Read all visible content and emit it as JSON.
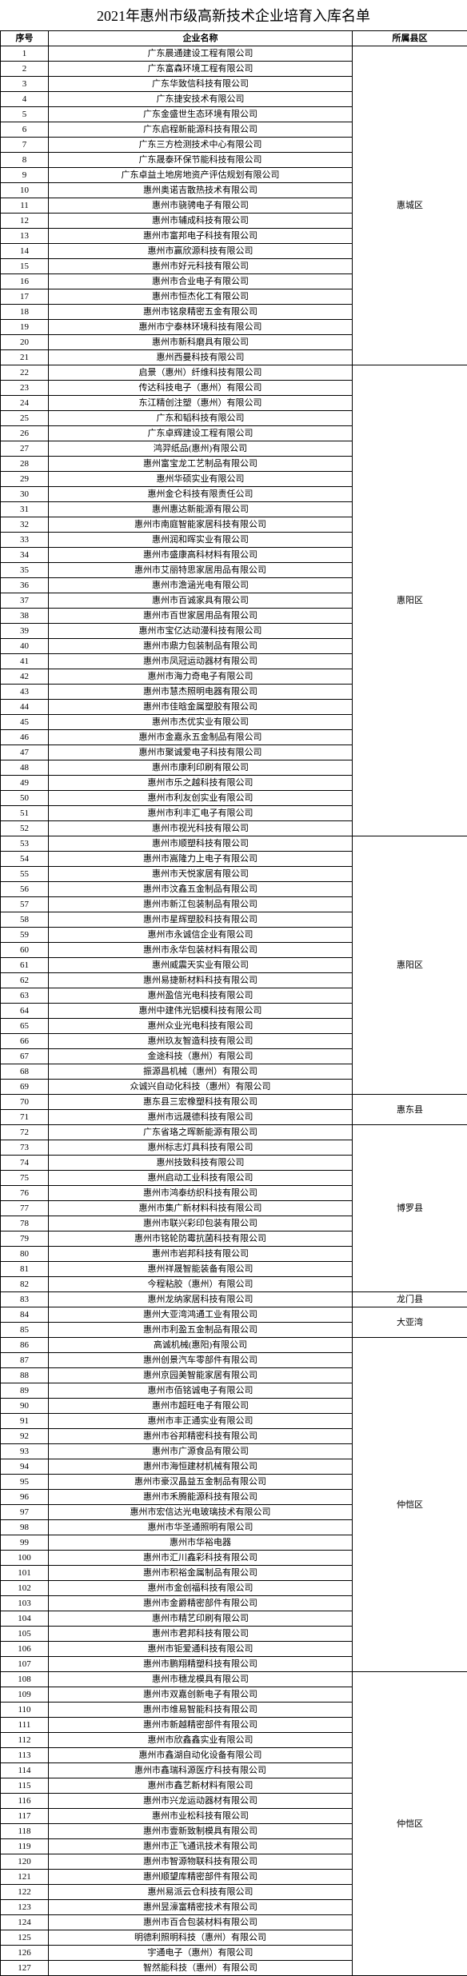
{
  "title": "2021年惠州市级高新技术企业培育入库名单",
  "columns": [
    "序号",
    "企业名称",
    "所属县区"
  ],
  "groups": [
    {
      "district": "惠城区",
      "rows": [
        {
          "seq": "1",
          "name": "广东晨通建设工程有限公司"
        },
        {
          "seq": "2",
          "name": "广东富森环境工程有限公司"
        },
        {
          "seq": "3",
          "name": "广东华致信科技有限公司"
        },
        {
          "seq": "4",
          "name": "广东捷安技术有限公司"
        },
        {
          "seq": "5",
          "name": "广东金盛世生态环境有限公司"
        },
        {
          "seq": "6",
          "name": "广东启程新能源科技有限公司"
        },
        {
          "seq": "7",
          "name": "广东三方检测技术中心有限公司"
        },
        {
          "seq": "8",
          "name": "广东晟泰环保节能科技有限公司"
        },
        {
          "seq": "9",
          "name": "广东卓益土地房地资产评估规划有限公司"
        },
        {
          "seq": "10",
          "name": "惠州奥诺吉散热技术有限公司"
        },
        {
          "seq": "11",
          "name": "惠州市骁骋电子有限公司"
        },
        {
          "seq": "12",
          "name": "惠州市辅成科技有限公司"
        },
        {
          "seq": "13",
          "name": "惠州市富邦电子科技有限公司"
        },
        {
          "seq": "14",
          "name": "惠州市赢欣源科技有限公司"
        },
        {
          "seq": "15",
          "name": "惠州市好元科技有限公司"
        },
        {
          "seq": "16",
          "name": "惠州市合业电子有限公司"
        },
        {
          "seq": "17",
          "name": "惠州市恒杰化工有限公司"
        },
        {
          "seq": "18",
          "name": "惠州市铭泉精密五金有限公司"
        },
        {
          "seq": "19",
          "name": "惠州市宁泰林环境科技有限公司"
        },
        {
          "seq": "20",
          "name": "惠州市新科磨具有限公司"
        },
        {
          "seq": "21",
          "name": "惠州西曼科技有限公司"
        }
      ]
    },
    {
      "district": "惠阳区",
      "rows": [
        {
          "seq": "22",
          "name": "启景（惠州）纤维科技有限公司"
        },
        {
          "seq": "23",
          "name": "传达科技电子（惠州）有限公司"
        },
        {
          "seq": "24",
          "name": "东江精创注塑（惠州）有限公司"
        },
        {
          "seq": "25",
          "name": "广东和韬科技有限公司"
        },
        {
          "seq": "26",
          "name": "广东卓辉建设工程有限公司"
        },
        {
          "seq": "27",
          "name": "鸿羿纸品(惠州)有限公司"
        },
        {
          "seq": "28",
          "name": "惠州富宝龙工艺制品有限公司"
        },
        {
          "seq": "29",
          "name": "惠州华硕实业有限公司"
        },
        {
          "seq": "30",
          "name": "惠州金仑科技有限责任公司"
        },
        {
          "seq": "31",
          "name": "惠州惠达新能源有限公司"
        },
        {
          "seq": "32",
          "name": "惠州市南庭智能家居科技有限公司"
        },
        {
          "seq": "33",
          "name": "惠州润和晖实业有限公司"
        },
        {
          "seq": "34",
          "name": "惠州市盛康高科材料有限公司"
        },
        {
          "seq": "35",
          "name": "惠州市艾丽特思家居用品有限公司"
        },
        {
          "seq": "36",
          "name": "惠州市澹涵光电有限公司"
        },
        {
          "seq": "37",
          "name": "惠州市百诚家具有限公司"
        },
        {
          "seq": "38",
          "name": "惠州市百世家居用品有限公司"
        },
        {
          "seq": "39",
          "name": "惠州市宝亿达动漫科技有限公司"
        },
        {
          "seq": "40",
          "name": "惠州市鼎力包装制品有限公司"
        },
        {
          "seq": "41",
          "name": "惠州市凤冠运动器材有限公司"
        },
        {
          "seq": "42",
          "name": "惠州市海力奇电子有限公司"
        },
        {
          "seq": "43",
          "name": "惠州市慧杰照明电器有限公司"
        },
        {
          "seq": "44",
          "name": "惠州市佳晗金属塑胶有限公司"
        },
        {
          "seq": "45",
          "name": "惠州市杰优实业有限公司"
        },
        {
          "seq": "46",
          "name": "惠州市金嘉永五金制品有限公司"
        },
        {
          "seq": "47",
          "name": "惠州市聚诚爱电子科技有限公司"
        },
        {
          "seq": "48",
          "name": "惠州市康利印刷有限公司"
        },
        {
          "seq": "49",
          "name": "惠州市乐之越科技有限公司"
        },
        {
          "seq": "50",
          "name": "惠州市利友创实业有限公司"
        },
        {
          "seq": "51",
          "name": "惠州市利丰汇电子有限公司"
        },
        {
          "seq": "52",
          "name": "惠州市视光科技有限公司"
        }
      ]
    },
    {
      "district": "惠阳区",
      "rows": [
        {
          "seq": "53",
          "name": "惠州市顺塑科技有限公司"
        },
        {
          "seq": "54",
          "name": "惠州市嵩隆力上电子有限公司"
        },
        {
          "seq": "55",
          "name": "惠州市天悦家居有限公司"
        },
        {
          "seq": "56",
          "name": "惠州市汶鑫五金制品有限公司"
        },
        {
          "seq": "57",
          "name": "惠州市新江包装制品有限公司"
        },
        {
          "seq": "58",
          "name": "惠州市星辉塑胶科技有限公司"
        },
        {
          "seq": "59",
          "name": "惠州市永诚信企业有限公司"
        },
        {
          "seq": "60",
          "name": "惠州市永华包装材料有限公司"
        },
        {
          "seq": "61",
          "name": "惠州威震天实业有限公司"
        },
        {
          "seq": "62",
          "name": "惠州易捷新材料科技有限公司"
        },
        {
          "seq": "63",
          "name": "惠州盈信光电科技有限公司"
        },
        {
          "seq": "64",
          "name": "惠州中建伟光铝模科技有限公司"
        },
        {
          "seq": "65",
          "name": "惠州众业光电科技有限公司"
        },
        {
          "seq": "66",
          "name": "惠州玖友智造科技有限公司"
        },
        {
          "seq": "67",
          "name": "金途科技（惠州）有限公司"
        },
        {
          "seq": "68",
          "name": "振源昌机械（惠州）有限公司"
        },
        {
          "seq": "69",
          "name": "众诚兴自动化科技（惠州）有限公司"
        }
      ]
    },
    {
      "district": "惠东县",
      "rows": [
        {
          "seq": "70",
          "name": "惠东县三宏橡塑科技有限公司"
        },
        {
          "seq": "71",
          "name": "惠州市远晟德科技有限公司"
        }
      ]
    },
    {
      "district": "博罗县",
      "rows": [
        {
          "seq": "72",
          "name": "广东省珞之晖新能源有限公司"
        },
        {
          "seq": "73",
          "name": "惠州标志灯具科技有限公司"
        },
        {
          "seq": "74",
          "name": "惠州技致科技有限公司"
        },
        {
          "seq": "75",
          "name": "惠州启动工业科技有限公司"
        },
        {
          "seq": "76",
          "name": "惠州市鸿泰纺织科技有限公司"
        },
        {
          "seq": "77",
          "name": "惠州市集广新材料科技有限公司"
        },
        {
          "seq": "78",
          "name": "惠州市联兴彩印包装有限公司"
        },
        {
          "seq": "79",
          "name": "惠州市铭轮防霉抗菌科技有限公司"
        },
        {
          "seq": "80",
          "name": "惠州市岩邦科技有限公司"
        },
        {
          "seq": "81",
          "name": "惠州祥晟智能装备有限公司"
        },
        {
          "seq": "82",
          "name": "今程粘胶（惠州）有限公司"
        }
      ]
    },
    {
      "district": "龙门县",
      "rows": [
        {
          "seq": "83",
          "name": "惠州龙纳家居科技有限公司"
        }
      ]
    },
    {
      "district": "大亚湾",
      "rows": [
        {
          "seq": "84",
          "name": "惠州大亚湾鸿通工业有限公司"
        },
        {
          "seq": "85",
          "name": "惠州市利盈五金制品有限公司"
        }
      ]
    },
    {
      "district": "仲恺区",
      "rows": [
        {
          "seq": "86",
          "name": "高诚机械(惠阳)有限公司"
        },
        {
          "seq": "87",
          "name": "惠州创景汽车零部件有限公司"
        },
        {
          "seq": "88",
          "name": "惠州京园美智能家居有限公司"
        },
        {
          "seq": "89",
          "name": "惠州市佰铭诚电子有限公司"
        },
        {
          "seq": "90",
          "name": "惠州市超旺电子有限公司"
        },
        {
          "seq": "91",
          "name": "惠州市丰正通实业有限公司"
        },
        {
          "seq": "92",
          "name": "惠州市谷邦精密科技有限公司"
        },
        {
          "seq": "93",
          "name": "惠州市广源食品有限公司"
        },
        {
          "seq": "94",
          "name": "惠州市海恒建材机械有限公司"
        },
        {
          "seq": "95",
          "name": "惠州市豪汉晶益五金制品有限公司"
        },
        {
          "seq": "96",
          "name": "惠州市禾腾能源科技有限公司"
        },
        {
          "seq": "97",
          "name": "惠州市宏信达光电玻璃技术有限公司"
        },
        {
          "seq": "98",
          "name": "惠州市华圣通照明有限公司"
        },
        {
          "seq": "99",
          "name": "惠州市华裕电器"
        },
        {
          "seq": "100",
          "name": "惠州市汇川鑫彩科技有限公司"
        },
        {
          "seq": "101",
          "name": "惠州市积裕金属制品有限公司"
        },
        {
          "seq": "102",
          "name": "惠州市金创福科技有限公司"
        },
        {
          "seq": "103",
          "name": "惠州市金爵精密部件有限公司"
        },
        {
          "seq": "104",
          "name": "惠州市精艺印刷有限公司"
        },
        {
          "seq": "105",
          "name": "惠州市君邦科技有限公司"
        },
        {
          "seq": "106",
          "name": "惠州市钜爱通科技有限公司"
        },
        {
          "seq": "107",
          "name": "惠州市鹏翔精塑科技有限公司"
        }
      ]
    },
    {
      "district": "仲恺区",
      "rows": [
        {
          "seq": "108",
          "name": "惠州市穗龙模具有限公司"
        },
        {
          "seq": "109",
          "name": "惠州市双嘉创新电子有限公司"
        },
        {
          "seq": "110",
          "name": "惠州市维易智能科技有限公司"
        },
        {
          "seq": "111",
          "name": "惠州市新越精密部件有限公司"
        },
        {
          "seq": "112",
          "name": "惠州市欣鑫鑫实业有限公司"
        },
        {
          "seq": "113",
          "name": "惠州市鑫湖自动化设备有限公司"
        },
        {
          "seq": "114",
          "name": "惠州市鑫瑞科源医疗科技有限公司"
        },
        {
          "seq": "115",
          "name": "惠州市鑫艺新材料有限公司"
        },
        {
          "seq": "116",
          "name": "惠州市兴龙运动器材有限公司"
        },
        {
          "seq": "117",
          "name": "惠州市业松科技有限公司"
        },
        {
          "seq": "118",
          "name": "惠州市壹新致制模具有限公司"
        },
        {
          "seq": "119",
          "name": "惠州市正飞通讯技术有限公司"
        },
        {
          "seq": "120",
          "name": "惠州市智源物联科技有限公司"
        },
        {
          "seq": "121",
          "name": "惠州顺望库精密部件有限公司"
        },
        {
          "seq": "122",
          "name": "惠州易派云仓科技有限公司"
        },
        {
          "seq": "123",
          "name": "惠州昱濠富精密技术有限公司"
        },
        {
          "seq": "124",
          "name": "惠州市百合包装材料有限公司"
        },
        {
          "seq": "125",
          "name": "明德利照明科技（惠州）有限公司"
        },
        {
          "seq": "126",
          "name": "宇通电子（惠州）有限公司"
        },
        {
          "seq": "127",
          "name": "智然能科技（惠州）有限公司"
        }
      ]
    }
  ]
}
